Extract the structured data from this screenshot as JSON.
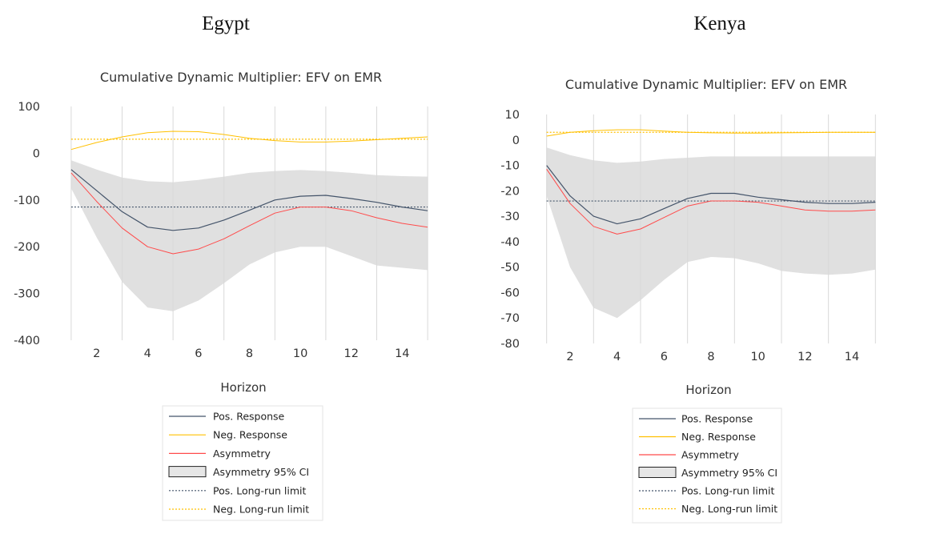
{
  "chart_data": [
    {
      "type": "line",
      "country": "Egypt",
      "title": "Cumulative Dynamic Multiplier: EFV on EMR",
      "xlabel": "Horizon",
      "ylabel": "",
      "xlim": [
        0.5,
        15.5
      ],
      "ylim": [
        -400,
        100
      ],
      "yticks": [
        100,
        0,
        -100,
        -200,
        -300,
        -400
      ],
      "ytick_labels": [
        "100",
        "0",
        "-100",
        "-200",
        "-300",
        "-400"
      ],
      "xticks": [
        2,
        4,
        6,
        8,
        10,
        12,
        14
      ],
      "xtick_labels": [
        "2",
        "4",
        "6",
        "8",
        "10",
        "12",
        "14"
      ],
      "grid": "vertical",
      "x": [
        1,
        2,
        3,
        4,
        5,
        6,
        7,
        8,
        9,
        10,
        11,
        12,
        13,
        14,
        15
      ],
      "series": [
        {
          "key": "pos",
          "name": "Pos. Response",
          "color": "#44546A",
          "style": "solid",
          "values": [
            -35,
            -80,
            -125,
            -158,
            -165,
            -160,
            -143,
            -122,
            -100,
            -92,
            -90,
            -97,
            -105,
            -115,
            -123
          ]
        },
        {
          "key": "neg",
          "name": "Neg. Response",
          "color": "#FFC000",
          "style": "solid",
          "values": [
            8,
            23,
            35,
            44,
            47,
            46,
            40,
            32,
            27,
            24,
            24,
            26,
            29,
            32,
            35
          ]
        },
        {
          "key": "asym",
          "name": "Asymmetry",
          "color": "#FF4B4B",
          "style": "solid",
          "values": [
            -42,
            -103,
            -160,
            -200,
            -215,
            -205,
            -183,
            -155,
            -128,
            -115,
            -115,
            -123,
            -138,
            -150,
            -158
          ]
        },
        {
          "key": "ci",
          "name": "Asymmetry 95% CI",
          "color": "#E0E0E0",
          "style": "band",
          "upper": [
            -15,
            -35,
            -52,
            -60,
            -62,
            -57,
            -50,
            -42,
            -38,
            -36,
            -38,
            -42,
            -47,
            -49,
            -50
          ],
          "lower": [
            -75,
            -180,
            -275,
            -330,
            -338,
            -315,
            -278,
            -238,
            -212,
            -200,
            -200,
            -220,
            -240,
            -245,
            -250
          ]
        },
        {
          "key": "posLR",
          "name": "Pos. Long-run limit",
          "color": "#44546A",
          "style": "dotted",
          "value": -115
        },
        {
          "key": "negLR",
          "name": "Neg. Long-run limit",
          "color": "#FFC000",
          "style": "dotted",
          "value": 30
        }
      ]
    },
    {
      "type": "line",
      "country": "Kenya",
      "title": "Cumulative Dynamic Multiplier: EFV on EMR",
      "xlabel": "Horizon",
      "ylabel": "",
      "xlim": [
        0.5,
        15.5
      ],
      "ylim": [
        -80,
        10
      ],
      "yticks": [
        10,
        0,
        -10,
        -20,
        -30,
        -40,
        -50,
        -60,
        -70,
        -80
      ],
      "ytick_labels": [
        "10",
        "0",
        "-10",
        "-20",
        "-30",
        "-40",
        "-50",
        "-60",
        "-70",
        "-80"
      ],
      "xticks": [
        2,
        4,
        6,
        8,
        10,
        12,
        14
      ],
      "xtick_labels": [
        "2",
        "4",
        "6",
        "8",
        "10",
        "12",
        "14"
      ],
      "grid": "vertical",
      "x": [
        1,
        2,
        3,
        4,
        5,
        6,
        7,
        8,
        9,
        10,
        11,
        12,
        13,
        14,
        15
      ],
      "series": [
        {
          "key": "pos",
          "name": "Pos. Response",
          "color": "#44546A",
          "style": "solid",
          "values": [
            -10,
            -22,
            -30,
            -33,
            -31,
            -27,
            -23,
            -21,
            -21,
            -22.5,
            -23.5,
            -24.5,
            -25,
            -25,
            -24.5
          ]
        },
        {
          "key": "neg",
          "name": "Neg. Response",
          "color": "#FFC000",
          "style": "solid",
          "values": [
            1.5,
            3,
            3.6,
            4,
            4,
            3.5,
            3,
            2.8,
            2.7,
            2.7,
            2.8,
            2.9,
            3,
            3,
            3
          ]
        },
        {
          "key": "asym",
          "name": "Asymmetry",
          "color": "#FF4B4B",
          "style": "solid",
          "values": [
            -11.5,
            -25,
            -34,
            -37,
            -35,
            -30.5,
            -26,
            -24,
            -24,
            -24.5,
            -26,
            -27.5,
            -28,
            -28,
            -27.5
          ]
        },
        {
          "key": "ci",
          "name": "Asymmetry 95% CI",
          "color": "#E0E0E0",
          "style": "band",
          "upper": [
            -3,
            -6,
            -8,
            -9,
            -8.5,
            -7.5,
            -7,
            -6.5,
            -6.5,
            -6.5,
            -6.5,
            -6.5,
            -6.5,
            -6.5,
            -6.5
          ],
          "lower": [
            -22,
            -50,
            -66,
            -70,
            -63,
            -55,
            -48,
            -46,
            -46.5,
            -48.5,
            -51.5,
            -52.5,
            -53,
            -52.5,
            -51
          ]
        },
        {
          "key": "posLR",
          "name": "Pos. Long-run limit",
          "color": "#44546A",
          "style": "dotted",
          "value": -24
        },
        {
          "key": "negLR",
          "name": "Neg. Long-run limit",
          "color": "#FFC000",
          "style": "dotted",
          "value": 3
        }
      ]
    }
  ]
}
